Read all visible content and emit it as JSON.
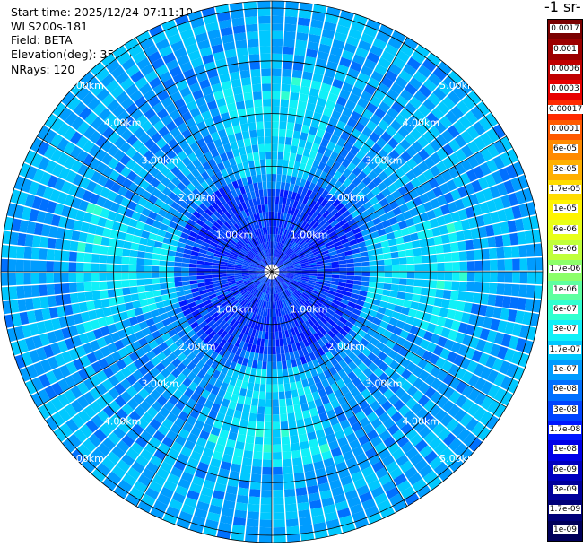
{
  "header": {
    "start_time": "Start time: 2025/12/24 07:11:10",
    "instrument": "WLS200s-181",
    "field": "Field: BETA",
    "elevation": "Elevation(deg): 35.00",
    "nrays": "NRays: 120"
  },
  "chart_data": {
    "type": "heatmap",
    "projection": "polar-ppi",
    "field": "BETA",
    "elevation_deg": 35.0,
    "n_rays": 120,
    "range_max_km": 5.0,
    "range_labels": [
      "1.00km",
      "2.00km",
      "3.00km",
      "4.00km",
      "5.00km"
    ],
    "range_values_km": [
      1,
      2,
      3,
      4,
      5
    ],
    "grid": true,
    "colorbar_title": "-1 sr-",
    "colorbar": {
      "labels": [
        "0.0017",
        "0.001",
        "0.0006",
        "0.0003",
        "0.00017",
        "0.0001",
        "6e-05",
        "3e-05",
        "1.7e-05",
        "1e-05",
        "6e-06",
        "3e-06",
        "1.7e-06",
        "1e-06",
        "6e-07",
        "3e-07",
        "1.7e-07",
        "1e-07",
        "6e-08",
        "3e-08",
        "1.7e-08",
        "1e-08",
        "6e-09",
        "3e-09",
        "1.7e-09",
        "1e-09"
      ],
      "colors": [
        "#7a0000",
        "#9c0000",
        "#c00000",
        "#e80000",
        "#ff2a00",
        "#ff5a00",
        "#ff8a00",
        "#ffb000",
        "#ffdc00",
        "#fff400",
        "#e8ff18",
        "#c0ff3a",
        "#8cff6a",
        "#5effa0",
        "#30ffd0",
        "#10f0f8",
        "#00c8ff",
        "#009cff",
        "#0070ff",
        "#0044ff",
        "#0018ff",
        "#0000e8",
        "#0000c0",
        "#00009c",
        "#000078",
        "#00005a"
      ]
    },
    "dominant_values": "1e-08 to 1.7e-07"
  }
}
